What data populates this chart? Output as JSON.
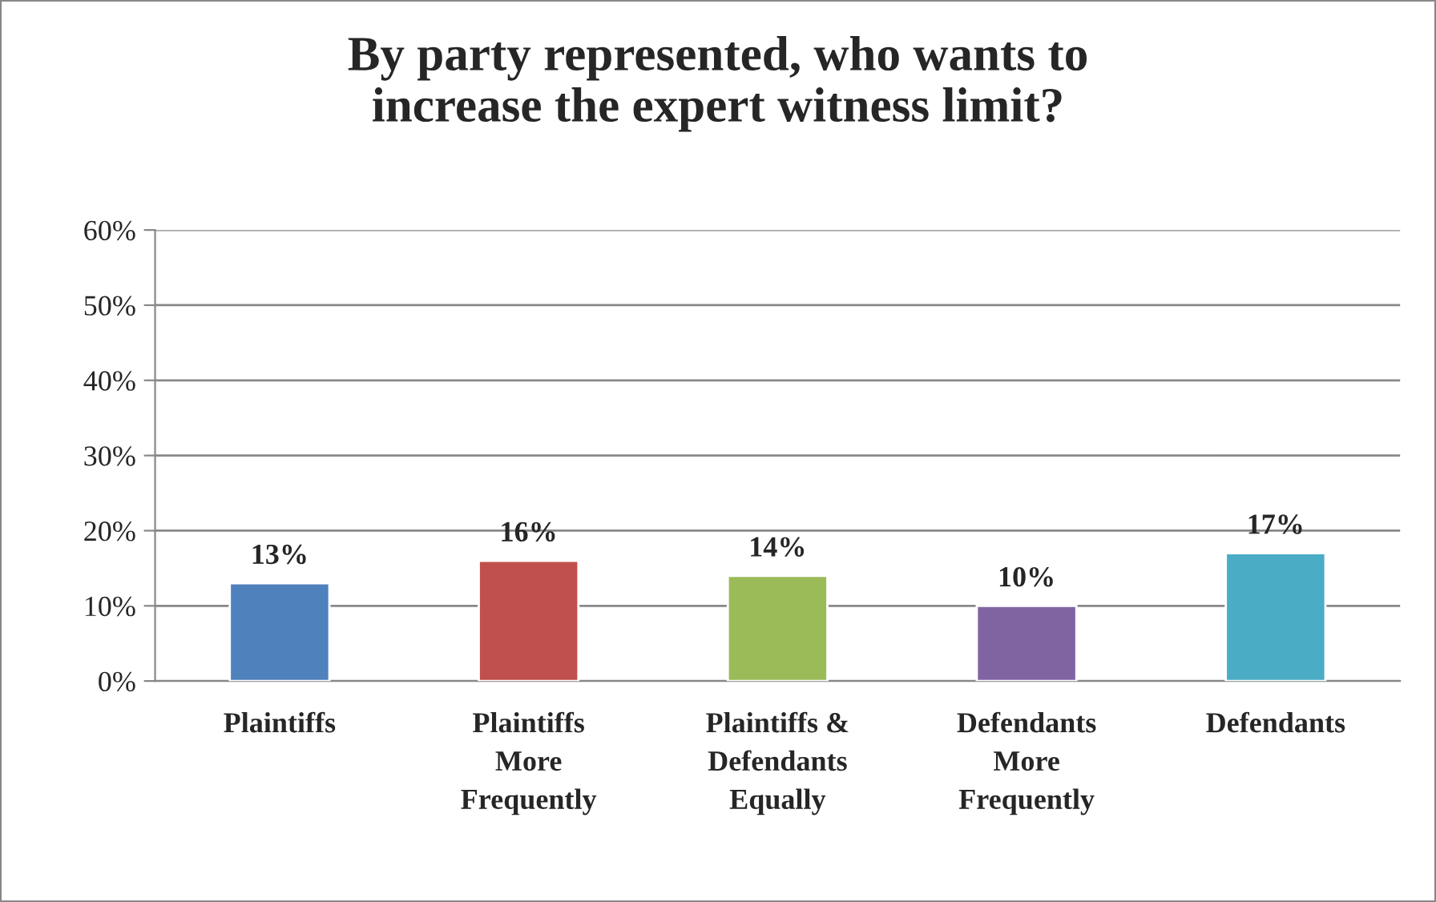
{
  "chart_data": {
    "type": "bar",
    "title": "By party represented, who wants to\nincrease the expert witness limit?",
    "categories": [
      "Plaintiffs",
      "Plaintiffs\nMore\nFrequently",
      "Plaintiffs &\nDefendants\nEqually",
      "Defendants\nMore\nFrequently",
      "Defendants"
    ],
    "values": [
      13,
      16,
      14,
      10,
      17
    ],
    "colors": [
      "#4f81bd",
      "#c0504d",
      "#9bbb59",
      "#8064a2",
      "#4bacc6"
    ],
    "value_labels": [
      "13%",
      "16%",
      "14%",
      "10%",
      "17%"
    ],
    "ylim": [
      0,
      60
    ],
    "yticks": [
      {
        "value": 0,
        "label": "0%"
      },
      {
        "value": 10,
        "label": "10%"
      },
      {
        "value": 20,
        "label": "20%"
      },
      {
        "value": 30,
        "label": "30%"
      },
      {
        "value": 40,
        "label": "40%"
      },
      {
        "value": 50,
        "label": "50%"
      },
      {
        "value": 60,
        "label": "60%"
      }
    ],
    "grid": "y",
    "legend": false
  }
}
